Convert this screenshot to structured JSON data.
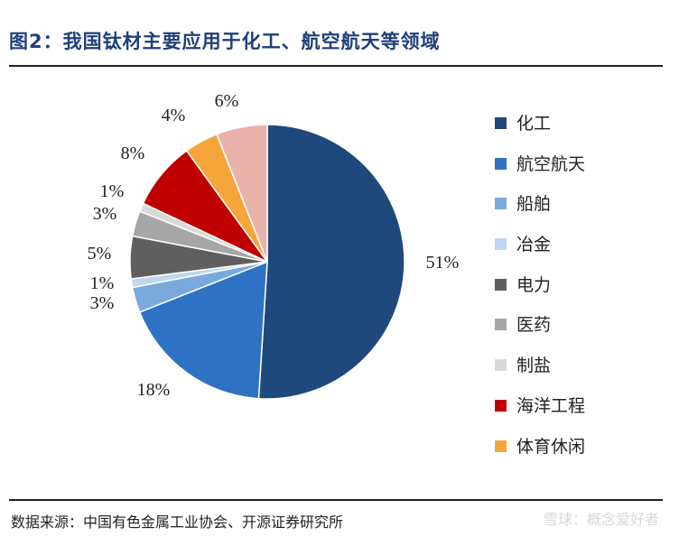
{
  "header": {
    "title": "图2：我国钛材主要应用于化工、航空航天等领域"
  },
  "footer": {
    "source": "数据来源：中国有色金属工业协会、开源证券研究所",
    "watermark": "雪球：概念爱好者"
  },
  "chart_data": {
    "type": "pie",
    "title": "图2：我国钛材主要应用于化工、航空航天等领域",
    "slices": [
      {
        "name": "化工",
        "value": 51,
        "label": "51%",
        "color": "#1f497d"
      },
      {
        "name": "航空航天",
        "value": 18,
        "label": "18%",
        "color": "#2f72c4"
      },
      {
        "name": "船舶",
        "value": 3,
        "label": "3%",
        "color": "#7aa9dd"
      },
      {
        "name": "冶金",
        "value": 1,
        "label": "1%",
        "color": "#bcd7ef"
      },
      {
        "name": "电力",
        "value": 5,
        "label": "5%",
        "color": "#5f5f5f"
      },
      {
        "name": "医药",
        "value": 3,
        "label": "3%",
        "color": "#a6a6a6"
      },
      {
        "name": "制盐",
        "value": 1,
        "label": "1%",
        "color": "#d9d9d9"
      },
      {
        "name": "海洋工程",
        "value": 8,
        "label": "8%",
        "color": "#c00000"
      },
      {
        "name": "体育休闲",
        "value": 4,
        "label": "4%",
        "color": "#f5a53a"
      },
      {
        "name": "",
        "value": 6,
        "label": "6%",
        "color": "#e9b3ac"
      }
    ],
    "legend_position": "right"
  }
}
